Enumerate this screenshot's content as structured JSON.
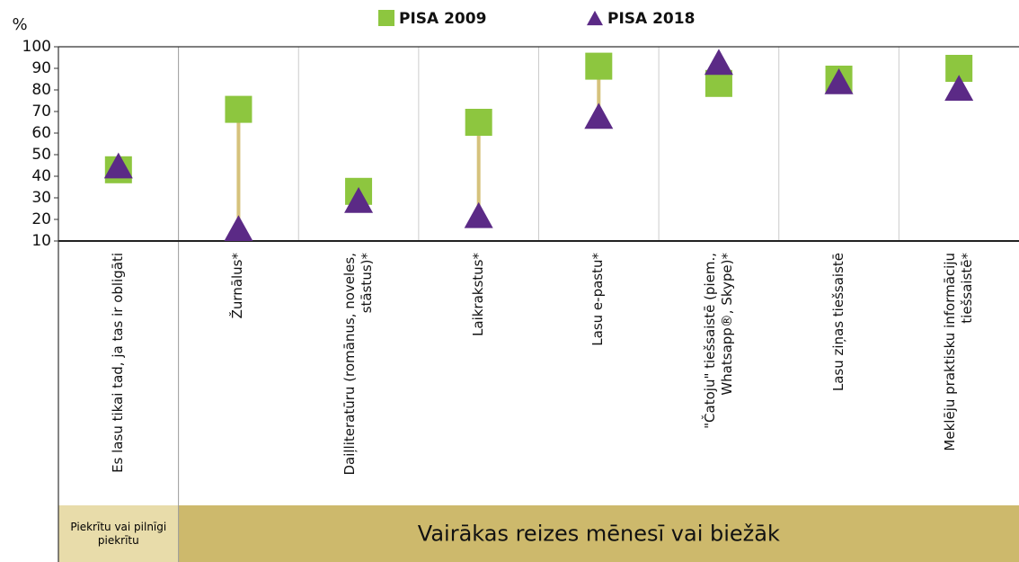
{
  "chart_data": {
    "type": "dot",
    "ylabel": "%",
    "categories": [
      "Es lasu tikai tad, ja tas ir obligāti",
      "Žurnālus*",
      "Daiļliteratūru (romānus, noveles, stāstus)*",
      "Laikrakstus*",
      "Lasu e-pastu*",
      "\"Čatoju\" tiešsaistē (piem., Whatsapp®, Skype)*",
      "Lasu ziņas tiešsaistē",
      "Meklēju praktisku informāciju tiešsaistē*"
    ],
    "series": [
      {
        "name": "PISA 2009",
        "color": "#8dc63f",
        "marker": "square",
        "values": [
          43,
          71,
          33,
          65,
          91,
          83,
          85,
          90
        ]
      },
      {
        "name": "PISA 2018",
        "color": "#5b2a86",
        "marker": "triangle",
        "values": [
          45,
          16,
          29,
          22,
          68,
          93,
          84,
          81
        ]
      }
    ],
    "groups": [
      "Piekrītu vai pilnīgi piekrītu",
      "Vairākas reizes mēnesī vai biežāk"
    ],
    "ylim": [
      10,
      100
    ],
    "yticks": [
      10,
      20,
      30,
      40,
      50,
      60,
      70,
      80,
      90,
      100
    ]
  }
}
